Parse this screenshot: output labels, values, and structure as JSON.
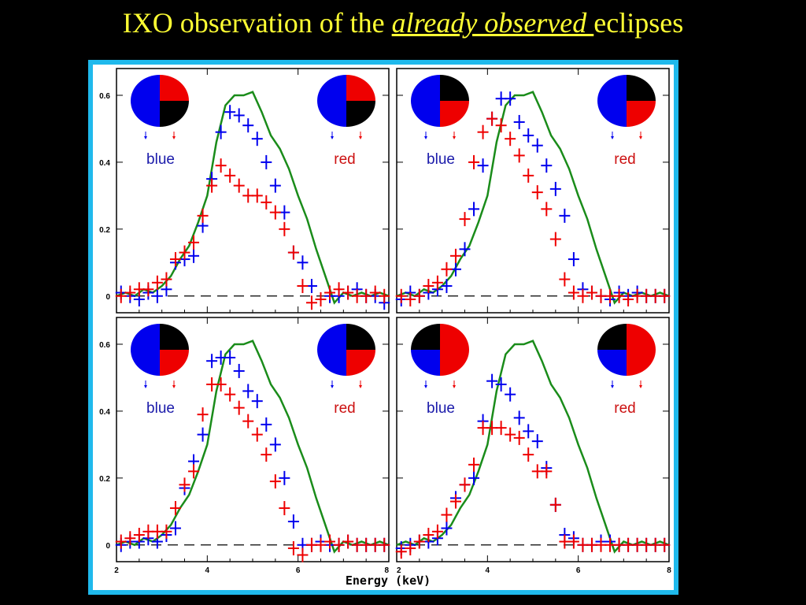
{
  "slide": {
    "title_prefix": "IXO observation of the ",
    "title_emphasis": "already observed ",
    "title_suffix": "eclipses"
  },
  "colors": {
    "title": "#ffff33",
    "background": "#000000",
    "frame": "#1fb9ec",
    "model": "#1a8c1a",
    "blue": "#0000ee",
    "red": "#ee0000",
    "eclipse": "#000000",
    "label_blue": "#1a1aaa",
    "label_red": "#cc1111"
  },
  "chart_data": {
    "type": "scatter",
    "xlabel": "Energy (keV)",
    "xlim": [
      2,
      8
    ],
    "ylim": [
      -0.05,
      0.68
    ],
    "x_ticks": [
      2,
      4,
      6,
      8
    ],
    "y_ticks": [
      0,
      0.2,
      0.4,
      0.6
    ],
    "y_tick_labels": [
      "0",
      "0.2",
      "0.4",
      "0.6"
    ],
    "reference_line_y": 0,
    "labels": {
      "blue": "blue",
      "red": "red"
    },
    "model_line": {
      "x": [
        2.0,
        2.2,
        2.4,
        2.6,
        2.8,
        3.0,
        3.2,
        3.4,
        3.6,
        3.8,
        4.0,
        4.2,
        4.4,
        4.6,
        4.8,
        5.0,
        5.2,
        5.4,
        5.6,
        5.8,
        6.0,
        6.2,
        6.4,
        6.6,
        6.8,
        7.0,
        7.2,
        7.4,
        7.6,
        7.8,
        8.0
      ],
      "y": [
        0.0,
        0.01,
        0.0,
        0.02,
        0.01,
        0.03,
        0.06,
        0.11,
        0.15,
        0.22,
        0.3,
        0.46,
        0.57,
        0.6,
        0.6,
        0.61,
        0.55,
        0.48,
        0.44,
        0.38,
        0.3,
        0.23,
        0.14,
        0.06,
        -0.02,
        0.01,
        0.0,
        0.01,
        0.0,
        0.01,
        0.0
      ]
    },
    "panels": [
      {
        "id": "top-left",
        "eclipse": {
          "left": [
            "blue",
            "blue"
          ],
          "right": [
            "red",
            "black"
          ]
        },
        "series": [
          {
            "color": "blue",
            "x": [
              2.1,
              2.3,
              2.5,
              2.7,
              2.9,
              3.1,
              3.3,
              3.5,
              3.7,
              3.9,
              4.1,
              4.3,
              4.5,
              4.7,
              4.9,
              5.1,
              5.3,
              5.5,
              5.7,
              5.9,
              6.1,
              6.3,
              6.5,
              6.7,
              6.9,
              7.1,
              7.3,
              7.5,
              7.7,
              7.9
            ],
            "y": [
              0.01,
              0.0,
              -0.01,
              0.01,
              0.0,
              0.02,
              0.1,
              0.11,
              0.12,
              0.21,
              0.35,
              0.49,
              0.55,
              0.54,
              0.51,
              0.47,
              0.4,
              0.33,
              0.25,
              0.13,
              0.1,
              0.03,
              -0.01,
              0.0,
              0.0,
              0.01,
              0.02,
              0.0,
              0.0,
              -0.02
            ]
          },
          {
            "color": "red",
            "x": [
              2.1,
              2.3,
              2.5,
              2.7,
              2.9,
              3.1,
              3.3,
              3.5,
              3.7,
              3.9,
              4.1,
              4.3,
              4.5,
              4.7,
              4.9,
              5.1,
              5.3,
              5.5,
              5.7,
              5.9,
              6.1,
              6.3,
              6.5,
              6.7,
              6.9,
              7.1,
              7.3,
              7.5,
              7.7,
              7.9
            ],
            "y": [
              0.0,
              0.01,
              0.02,
              0.02,
              0.04,
              0.05,
              0.11,
              0.13,
              0.16,
              0.24,
              0.33,
              0.39,
              0.36,
              0.33,
              0.3,
              0.3,
              0.28,
              0.25,
              0.2,
              0.13,
              0.03,
              -0.02,
              -0.01,
              0.01,
              0.02,
              0.01,
              0.0,
              0.0,
              0.01,
              0.0
            ]
          }
        ]
      },
      {
        "id": "top-right",
        "eclipse": {
          "left": [
            "blue",
            "blue"
          ],
          "right": [
            "black",
            "red"
          ]
        },
        "series": [
          {
            "color": "blue",
            "x": [
              2.1,
              2.3,
              2.5,
              2.7,
              2.9,
              3.1,
              3.3,
              3.5,
              3.7,
              3.9,
              4.1,
              4.3,
              4.5,
              4.7,
              4.9,
              5.1,
              5.3,
              5.5,
              5.7,
              5.9,
              6.1,
              6.3,
              6.5,
              6.7,
              6.9,
              7.1,
              7.3,
              7.5,
              7.7,
              7.9
            ],
            "y": [
              -0.01,
              0.01,
              0.0,
              0.01,
              0.02,
              0.03,
              0.08,
              0.14,
              0.26,
              0.39,
              0.53,
              0.59,
              0.59,
              0.52,
              0.48,
              0.45,
              0.39,
              0.32,
              0.24,
              0.11,
              0.02,
              0.01,
              0.0,
              -0.01,
              0.01,
              0.0,
              0.01,
              0.0,
              0.0,
              0.0
            ]
          },
          {
            "color": "red",
            "x": [
              2.1,
              2.3,
              2.5,
              2.7,
              2.9,
              3.1,
              3.3,
              3.5,
              3.7,
              3.9,
              4.1,
              4.3,
              4.5,
              4.7,
              4.9,
              5.1,
              5.3,
              5.5,
              5.7,
              5.9,
              6.1,
              6.3,
              6.5,
              6.7,
              6.9,
              7.1,
              7.3,
              7.5,
              7.7,
              7.9
            ],
            "y": [
              0.0,
              -0.01,
              0.0,
              0.03,
              0.04,
              0.08,
              0.12,
              0.23,
              0.4,
              0.49,
              0.53,
              0.51,
              0.47,
              0.42,
              0.36,
              0.31,
              0.26,
              0.17,
              0.05,
              0.01,
              0.0,
              0.01,
              0.0,
              0.0,
              0.0,
              -0.01,
              0.0,
              0.0,
              0.0,
              0.0
            ]
          }
        ]
      },
      {
        "id": "bottom-left",
        "eclipse": {
          "left": [
            "blue",
            "blue"
          ],
          "right": [
            "black",
            "red"
          ]
        },
        "series": [
          {
            "color": "blue",
            "x": [
              2.1,
              2.3,
              2.5,
              2.7,
              2.9,
              3.1,
              3.3,
              3.5,
              3.7,
              3.9,
              4.1,
              4.3,
              4.5,
              4.7,
              4.9,
              5.1,
              5.3,
              5.5,
              5.7,
              5.9,
              6.1,
              6.3,
              6.5,
              6.7,
              6.9,
              7.1,
              7.3,
              7.5,
              7.7,
              7.9
            ],
            "y": [
              0.0,
              0.01,
              0.01,
              0.02,
              0.01,
              0.03,
              0.05,
              0.17,
              0.25,
              0.33,
              0.55,
              0.56,
              0.56,
              0.52,
              0.46,
              0.43,
              0.36,
              0.3,
              0.2,
              0.07,
              0.0,
              0.0,
              0.01,
              0.0,
              0.0,
              0.01,
              0.0,
              0.0,
              0.0,
              0.0
            ]
          },
          {
            "color": "red",
            "x": [
              2.1,
              2.3,
              2.5,
              2.7,
              2.9,
              3.1,
              3.3,
              3.5,
              3.7,
              3.9,
              4.1,
              4.3,
              4.5,
              4.7,
              4.9,
              5.1,
              5.3,
              5.5,
              5.7,
              5.9,
              6.1,
              6.3,
              6.5,
              6.7,
              6.9,
              7.1,
              7.3,
              7.5,
              7.7,
              7.9
            ],
            "y": [
              0.01,
              0.02,
              0.03,
              0.04,
              0.04,
              0.04,
              0.11,
              0.18,
              0.22,
              0.39,
              0.48,
              0.48,
              0.45,
              0.41,
              0.37,
              0.33,
              0.27,
              0.19,
              0.11,
              -0.01,
              -0.03,
              0.0,
              0.0,
              0.01,
              0.0,
              0.01,
              0.0,
              0.0,
              0.0,
              0.0
            ]
          }
        ]
      },
      {
        "id": "bottom-right",
        "eclipse": {
          "left": [
            "black",
            "blue"
          ],
          "right": [
            "red",
            "red"
          ]
        },
        "series": [
          {
            "color": "blue",
            "x": [
              2.1,
              2.3,
              2.5,
              2.7,
              2.9,
              3.1,
              3.3,
              3.5,
              3.7,
              3.9,
              4.1,
              4.3,
              4.5,
              4.7,
              4.9,
              5.1,
              5.3,
              5.5,
              5.7,
              5.9,
              6.1,
              6.3,
              6.5,
              6.7,
              6.9,
              7.1,
              7.3,
              7.5,
              7.7,
              7.9
            ],
            "y": [
              -0.01,
              0.0,
              0.01,
              0.01,
              0.02,
              0.05,
              0.14,
              0.18,
              0.2,
              0.37,
              0.49,
              0.48,
              0.45,
              0.38,
              0.34,
              0.31,
              0.23,
              0.12,
              0.03,
              0.02,
              0.0,
              0.0,
              0.01,
              0.01,
              0.0,
              0.0,
              0.0,
              0.0,
              0.0,
              0.0
            ]
          },
          {
            "color": "red",
            "x": [
              2.1,
              2.3,
              2.5,
              2.7,
              2.9,
              3.1,
              3.3,
              3.5,
              3.7,
              3.9,
              4.1,
              4.3,
              4.5,
              4.7,
              4.9,
              5.1,
              5.3,
              5.5,
              5.7,
              5.9,
              6.1,
              6.3,
              6.5,
              6.7,
              6.9,
              7.1,
              7.3,
              7.5,
              7.7,
              7.9
            ],
            "y": [
              -0.02,
              -0.01,
              0.01,
              0.03,
              0.04,
              0.09,
              0.13,
              0.18,
              0.24,
              0.35,
              0.35,
              0.35,
              0.33,
              0.32,
              0.27,
              0.22,
              0.22,
              0.12,
              0.01,
              0.01,
              0.0,
              0.0,
              0.0,
              0.0,
              0.0,
              0.0,
              0.0,
              0.0,
              0.0,
              0.0
            ]
          }
        ]
      }
    ]
  }
}
